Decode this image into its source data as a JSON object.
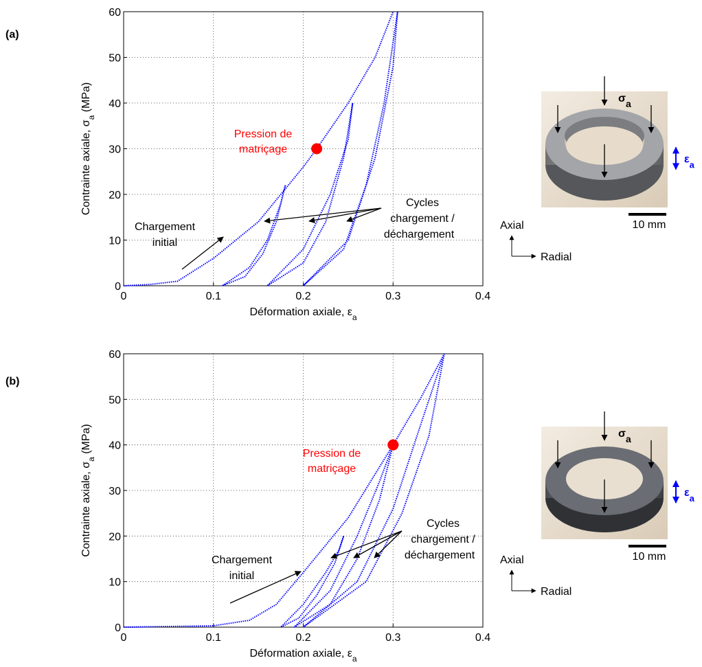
{
  "chart_data": [
    {
      "type": "line",
      "panel": "(a)",
      "xlabel": [
        "Déformation axiale, ε",
        "a"
      ],
      "ylabel": [
        "Contrainte axiale, σ",
        "a",
        " (MPa)"
      ],
      "xlim": [
        0,
        0.4
      ],
      "xticks": [
        0,
        0.1,
        0.2,
        0.3,
        0.4
      ],
      "ylim": [
        0,
        60
      ],
      "yticks": [
        0,
        10,
        20,
        30,
        40,
        50,
        60
      ],
      "grid": true,
      "series": [
        {
          "color": "#0000ff",
          "x": [
            0,
            0.03,
            0.06,
            0.1,
            0.15,
            0.2,
            0.215,
            0.25,
            0.28,
            0.3
          ],
          "values": [
            0,
            0.3,
            1,
            6,
            14,
            26,
            30,
            40,
            50,
            60
          ]
        },
        {
          "color": "#0000ff",
          "x": [
            0.18,
            0.17,
            0.155,
            0.135,
            0.11,
            0.14,
            0.16,
            0.175,
            0.18
          ],
          "values": [
            22,
            14,
            7,
            2,
            0,
            4,
            10,
            18,
            22
          ]
        },
        {
          "color": "#0000ff",
          "x": [
            0.255,
            0.245,
            0.225,
            0.2,
            0.16,
            0.2,
            0.23,
            0.25,
            0.255
          ],
          "values": [
            40,
            28,
            14,
            5,
            0,
            8,
            20,
            32,
            40
          ]
        },
        {
          "color": "#0000ff",
          "x": [
            0.305,
            0.29,
            0.27,
            0.245,
            0.2,
            0.25,
            0.28,
            0.3,
            0.305
          ],
          "values": [
            60,
            40,
            22,
            8,
            0,
            10,
            28,
            48,
            60
          ]
        }
      ],
      "highlight": {
        "x": 0.215,
        "value": 30,
        "color": "#ff0000",
        "label": [
          "Pression de",
          "matriçage"
        ]
      },
      "annotations": {
        "initial": [
          "Chargement",
          "initial"
        ],
        "cycles": [
          "Cycles",
          "chargement /",
          "déchargement"
        ]
      },
      "photo_labels": {
        "stress": [
          "σ",
          "a"
        ],
        "strain": [
          "ε",
          "a"
        ],
        "scale": "10 mm",
        "axes": [
          "Axial",
          "Radial"
        ]
      }
    },
    {
      "type": "line",
      "panel": "(b)",
      "xlabel": [
        "Déformation axiale, ε",
        "a"
      ],
      "ylabel": [
        "Contrainte axiale, σ",
        "a",
        " (MPa)"
      ],
      "xlim": [
        0,
        0.4
      ],
      "xticks": [
        0,
        0.1,
        0.2,
        0.3,
        0.4
      ],
      "ylim": [
        0,
        60
      ],
      "yticks": [
        0,
        10,
        20,
        30,
        40,
        50,
        60
      ],
      "grid": true,
      "series": [
        {
          "color": "#0000ff",
          "x": [
            0,
            0.1,
            0.14,
            0.17,
            0.2,
            0.25,
            0.3,
            0.33,
            0.357
          ],
          "values": [
            0,
            0.3,
            1.5,
            5,
            12,
            24,
            40,
            50,
            60
          ]
        },
        {
          "color": "#0000ff",
          "x": [
            0.245,
            0.235,
            0.215,
            0.195,
            0.175,
            0.2,
            0.225,
            0.24,
            0.245
          ],
          "values": [
            20,
            14,
            7,
            2,
            0,
            5,
            12,
            17,
            20
          ]
        },
        {
          "color": "#0000ff",
          "x": [
            0.3,
            0.285,
            0.26,
            0.23,
            0.19,
            0.23,
            0.26,
            0.285,
            0.3
          ],
          "values": [
            40,
            28,
            15,
            5,
            0,
            8,
            20,
            32,
            40
          ]
        },
        {
          "color": "#0000ff",
          "x": [
            0.357,
            0.34,
            0.31,
            0.27,
            0.2,
            0.26,
            0.3,
            0.33,
            0.357
          ],
          "values": [
            60,
            42,
            25,
            10,
            0,
            10,
            26,
            44,
            60
          ]
        }
      ],
      "highlight": {
        "x": 0.3,
        "value": 40,
        "color": "#ff0000",
        "label": [
          "Pression de",
          "matriçage"
        ]
      },
      "annotations": {
        "initial": [
          "Chargement",
          "initial"
        ],
        "cycles": [
          "Cycles",
          "chargement /",
          "déchargement"
        ]
      },
      "photo_labels": {
        "stress": [
          "σ",
          "a"
        ],
        "strain": [
          "ε",
          "a"
        ],
        "scale": "10 mm",
        "axes": [
          "Axial",
          "Radial"
        ]
      }
    }
  ]
}
